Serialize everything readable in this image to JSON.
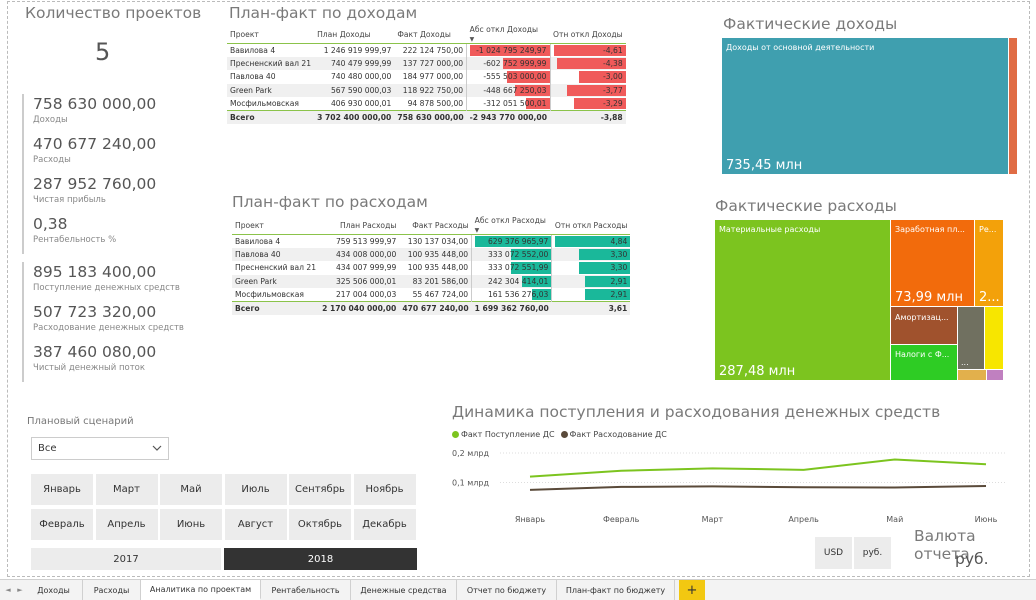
{
  "kpi": {
    "count_title": "Количество проектов",
    "count_value": "5",
    "group1": [
      {
        "value": "758 630 000,00",
        "label": "Доходы"
      },
      {
        "value": "470 677 240,00",
        "label": "Расходы"
      },
      {
        "value": "287 952 760,00",
        "label": "Чистая прибыль"
      },
      {
        "value": "0,38",
        "label": "Рентабельность %"
      }
    ],
    "group2": [
      {
        "value": "895 183 400,00",
        "label": "Поступление денежных средств"
      },
      {
        "value": "507 723 320,00",
        "label": "Расходование денежных средств"
      },
      {
        "value": "387 460 080,00",
        "label": "Чистый денежный поток"
      }
    ]
  },
  "income_table": {
    "title": "План-факт по доходам",
    "headers": [
      "Проект",
      "План Доходы",
      "Факт Доходы",
      "Абс откл Доходы",
      "Отн откл Доходы"
    ],
    "rows": [
      {
        "project": "Вавилова 4",
        "plan": "1 246 919 999,97",
        "fact": "222 124 750,00",
        "abs": "-1 024 795 249,97",
        "rel": "-4,61",
        "abs_frac": 1.0,
        "rel_frac": 1.0
      },
      {
        "project": "Пресненский вал 21",
        "plan": "740 479 999,99",
        "fact": "137 727 000,00",
        "abs": "-602 752 999,99",
        "rel": "-4,38",
        "abs_frac": 0.59,
        "rel_frac": 0.95
      },
      {
        "project": "Павлова 40",
        "plan": "740 480 000,00",
        "fact": "184 977 000,00",
        "abs": "-555 503 000,00",
        "rel": "-3,00",
        "abs_frac": 0.54,
        "rel_frac": 0.65
      },
      {
        "project": "Green Park",
        "plan": "567 590 000,03",
        "fact": "118 922 750,00",
        "abs": "-448 667 250,03",
        "rel": "-3,77",
        "abs_frac": 0.44,
        "rel_frac": 0.82
      },
      {
        "project": "Мосфильмовская",
        "plan": "406 930 000,01",
        "fact": "94 878 500,00",
        "abs": "-312 051 500,01",
        "rel": "-3,29",
        "abs_frac": 0.3,
        "rel_frac": 0.71
      }
    ],
    "total": {
      "project": "Всего",
      "plan": "3 702 400 000,00",
      "fact": "758 630 000,00",
      "abs": "-2 943 770 000,00",
      "rel": "-3,88"
    }
  },
  "expense_table": {
    "title": "План-факт по расходам",
    "headers": [
      "Проект",
      "План Расходы",
      "Факт Расходы",
      "Абс откл Расходы",
      "Отн откл Расходы"
    ],
    "rows": [
      {
        "project": "Вавилова 4",
        "plan": "759 513 999,97",
        "fact": "130 137 034,00",
        "abs": "629 376 965,97",
        "rel": "4,84",
        "abs_frac": 1.0,
        "rel_frac": 1.0
      },
      {
        "project": "Павлова 40",
        "plan": "434 008 000,00",
        "fact": "100 935 448,00",
        "abs": "333 072 552,00",
        "rel": "3,30",
        "abs_frac": 0.53,
        "rel_frac": 0.68
      },
      {
        "project": "Пресненский вал 21",
        "plan": "434 007 999,99",
        "fact": "100 935 448,00",
        "abs": "333 072 551,99",
        "rel": "3,30",
        "abs_frac": 0.53,
        "rel_frac": 0.68
      },
      {
        "project": "Green Park",
        "plan": "325 506 000,01",
        "fact": "83 201 586,00",
        "abs": "242 304 414,01",
        "rel": "2,91",
        "abs_frac": 0.38,
        "rel_frac": 0.6
      },
      {
        "project": "Мосфильмовская",
        "plan": "217 004 000,03",
        "fact": "55 467 724,00",
        "abs": "161 536 276,03",
        "rel": "2,91",
        "abs_frac": 0.26,
        "rel_frac": 0.6
      }
    ],
    "total": {
      "project": "Всего",
      "plan": "2 170 040 000,00",
      "fact": "470 677 240,00",
      "abs": "1 699 362 760,00",
      "rel": "3,61"
    }
  },
  "income_treemap": {
    "title": "Фактические доходы",
    "main_label": "Доходы от основной деятельности",
    "main_value": "735,45 млн",
    "main_color": "#3f9faf",
    "other_color": "#e06c45"
  },
  "expense_treemap": {
    "title": "Фактические расходы",
    "materials_label": "Материальные расходы",
    "materials_value": "287,48 млн",
    "salary_label": "Заработная пл...",
    "salary_value": "73,99 млн",
    "re_label": "Ре...",
    "re_value": "2...",
    "amort_label": "Амортизац...",
    "taxes_label": "Налоги с Ф...",
    "small_label": "...",
    "colors": {
      "materials": "#7cc41f",
      "salary": "#f26b0c",
      "re": "#f3a10a",
      "amort": "#a0522d",
      "taxes": "#2ecc24",
      "grey": "#707060",
      "yellow": "#f7e600",
      "tan": "#e2b04c",
      "pink": "#c080c0"
    }
  },
  "line_chart_title": "Динамика поступления и расходования денежных средств",
  "legend": {
    "series1": "Факт Поступление ДС",
    "series2": "Факт Расходование ДС",
    "color1": "#7cc41f",
    "color2": "#5a4a3a"
  },
  "chart_data": {
    "type": "line",
    "categories": [
      "Январь",
      "Февраль",
      "Март",
      "Апрель",
      "Май",
      "Июнь"
    ],
    "series": [
      {
        "name": "Факт Поступление ДС",
        "values": [
          0.12,
          0.14,
          0.148,
          0.143,
          0.178,
          0.162
        ]
      },
      {
        "name": "Факт Расходование ДС",
        "values": [
          0.075,
          0.085,
          0.087,
          0.084,
          0.083,
          0.088
        ]
      }
    ],
    "y_ticks": [
      "0,2 млрд",
      "0,1 млрд"
    ],
    "ylim": [
      0,
      0.2
    ],
    "grid": true,
    "legend": "top-left"
  },
  "slicer": {
    "label": "Плановый сценарий",
    "value": "Все",
    "months": [
      "Январь",
      "Март",
      "Май",
      "Июль",
      "Сентябрь",
      "Ноябрь",
      "Февраль",
      "Апрель",
      "Июнь",
      "Август",
      "Октябрь",
      "Декабрь"
    ],
    "years": [
      "2017",
      "2018"
    ]
  },
  "currency": {
    "title": "Валюта отчета",
    "value": "руб.",
    "buttons": [
      "USD",
      "руб."
    ]
  },
  "tabs": [
    "Доходы",
    "Расходы",
    "Аналитика по проектам",
    "Рентабельность",
    "Денежные средства",
    "Отчет по бюджету",
    "План-факт по бюджету"
  ],
  "add_tab": "+",
  "nav": {
    "prev": "◄",
    "next": "►"
  }
}
